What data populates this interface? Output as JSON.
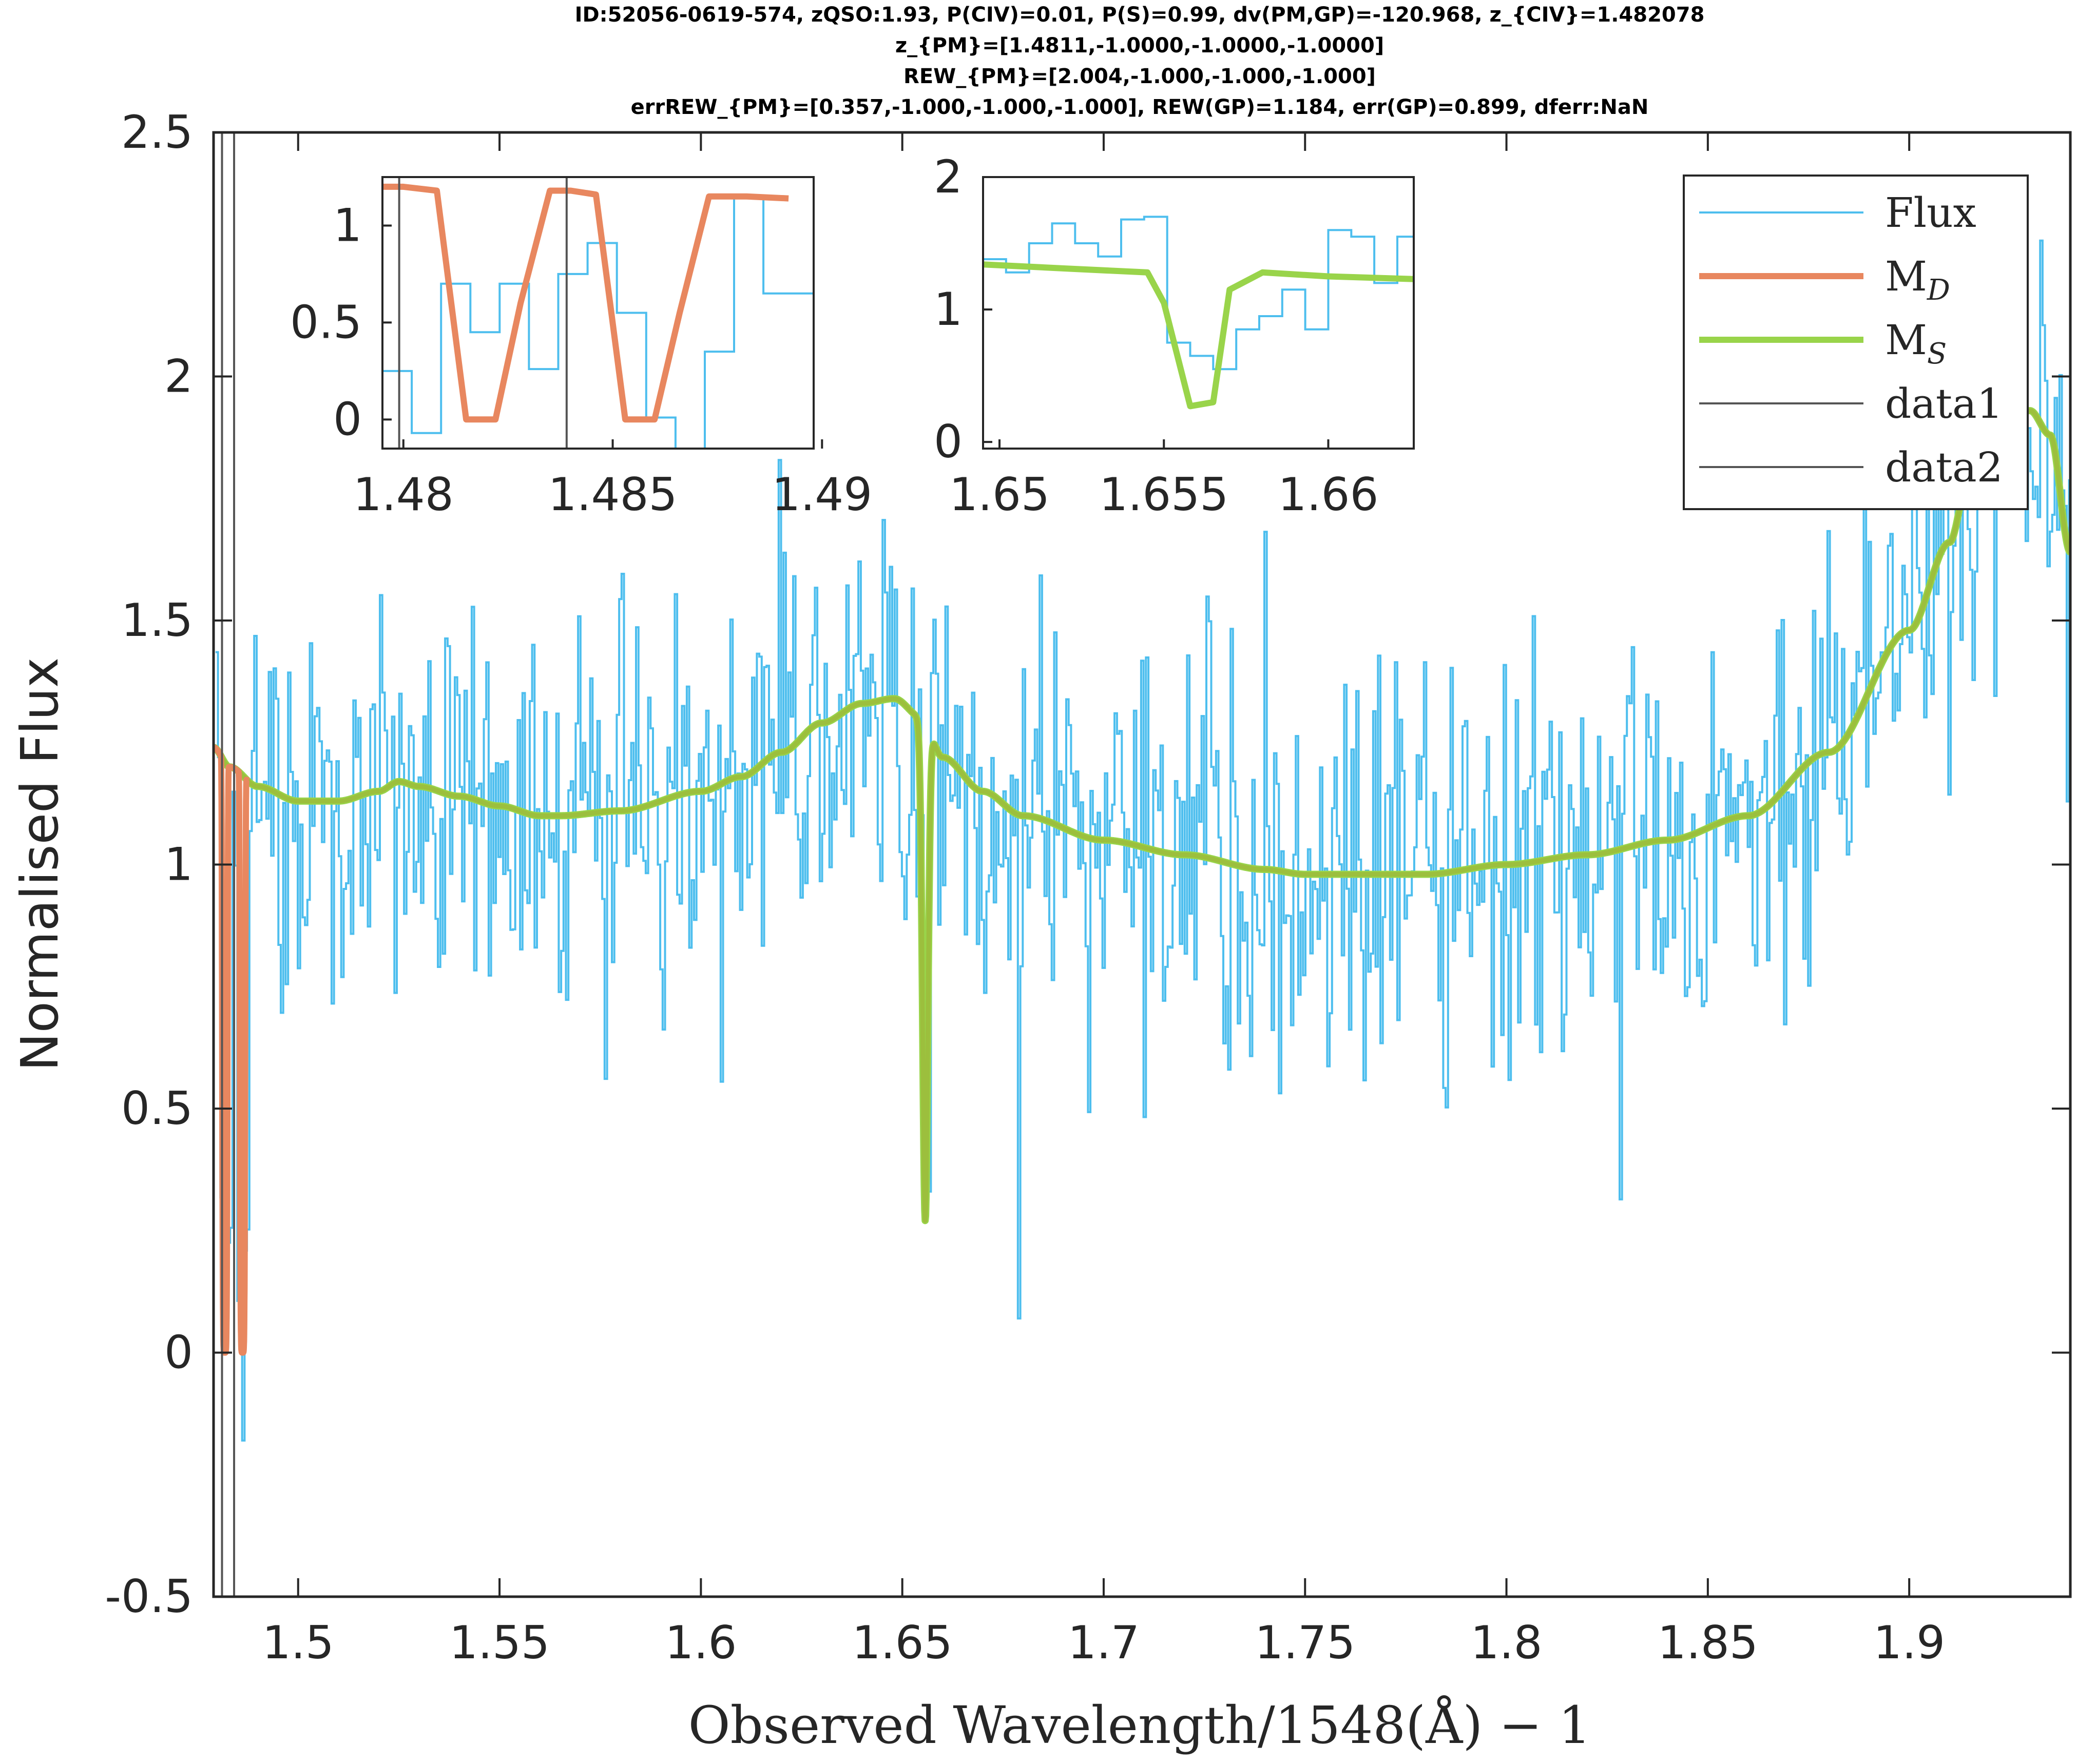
{
  "chart_data": {
    "type": "line",
    "title_lines": [
      "ID:52056-0619-574, zQSO:1.93, P(CIV)=0.01, P(S)=0.99, dv(PM,GP)=-120.968, z_{CIV}=1.482078",
      "z_{PM}=[1.4811,-1.0000,-1.0000,-1.0000]",
      "REW_{PM}=[2.004,-1.000,-1.000,-1.000]",
      "errREW_{PM}=[0.357,-1.000,-1.000,-1.000], REW(GP)=1.184, err(GP)=0.899, dferr:NaN"
    ],
    "xlabel": "Observed Wavelength/1548(Å) − 1",
    "ylabel": "Normalised Flux",
    "xlim": [
      1.479,
      1.94
    ],
    "ylim": [
      -0.5,
      2.5
    ],
    "x_ticks": [
      1.5,
      1.55,
      1.6,
      1.65,
      1.7,
      1.75,
      1.8,
      1.85,
      1.9
    ],
    "x_tick_labels": [
      "1.5",
      "1.55",
      "1.6",
      "1.65",
      "1.7",
      "1.75",
      "1.8",
      "1.85",
      "1.9"
    ],
    "y_ticks": [
      -0.5,
      0,
      0.5,
      1,
      1.5,
      2,
      2.5
    ],
    "y_tick_labels": [
      "-0.5",
      "0",
      "0.5",
      "1",
      "1.5",
      "2",
      "2.5"
    ],
    "grid": false,
    "legend": {
      "placement": "top-right",
      "entries": [
        {
          "label": "Flux",
          "sub": "",
          "color": "#4DBEEE"
        },
        {
          "label": "M",
          "sub": "D",
          "color": "#E8875F"
        },
        {
          "label": "M",
          "sub": "S",
          "color": "#99D44A"
        },
        {
          "label": "data1",
          "sub": "",
          "color": "#555555"
        },
        {
          "label": "data2",
          "sub": "",
          "color": "#555555"
        }
      ]
    },
    "colors": {
      "flux": "#4DBEEE",
      "model_d": "#E8875F",
      "model_s": "#99D44A",
      "model_overlap": "#9DB83A",
      "vline": "#555555"
    },
    "vlines": [
      1.4811,
      1.4841
    ],
    "continuum": {
      "x": [
        1.479,
        1.483,
        1.49,
        1.5,
        1.51,
        1.52,
        1.525,
        1.53,
        1.54,
        1.55,
        1.56,
        1.565,
        1.58,
        1.6,
        1.61,
        1.62,
        1.63,
        1.64,
        1.648,
        1.655,
        1.66,
        1.67,
        1.68,
        1.7,
        1.72,
        1.74,
        1.75,
        1.76,
        1.77,
        1.78,
        1.8,
        1.82,
        1.84,
        1.86,
        1.88,
        1.9,
        1.91,
        1.915,
        1.92,
        1.925,
        1.93,
        1.935,
        1.94
      ],
      "y": [
        1.24,
        1.2,
        1.16,
        1.13,
        1.13,
        1.15,
        1.17,
        1.16,
        1.14,
        1.12,
        1.1,
        1.1,
        1.11,
        1.15,
        1.18,
        1.23,
        1.29,
        1.33,
        1.34,
        1.3,
        1.22,
        1.15,
        1.1,
        1.05,
        1.02,
        0.99,
        0.98,
        0.98,
        0.98,
        0.98,
        1.0,
        1.02,
        1.05,
        1.1,
        1.23,
        1.48,
        1.66,
        1.8,
        1.9,
        1.93,
        1.93,
        1.88,
        1.64
      ]
    },
    "md_dips": [
      {
        "center": 1.4818,
        "width": 0.0014
      },
      {
        "center": 1.4862,
        "width": 0.0014
      }
    ],
    "ms_dip": {
      "center": 1.6557,
      "width": 0.0011,
      "min": 0.27
    },
    "flux": {
      "x_start": 1.4795,
      "x_step": 0.0006,
      "noise_sigma": 0.21,
      "seed": 52056,
      "features": [
        {
          "x": 1.4818,
          "y": 0.05
        },
        {
          "x": 1.4862,
          "y": -0.18
        },
        {
          "x": 1.6556,
          "y": 0.62
        },
        {
          "x": 1.6562,
          "y": 0.33
        },
        {
          "x": 1.6785,
          "y": 0.07
        }
      ]
    },
    "insets": [
      {
        "xlim": [
          1.4795,
          1.4898
        ],
        "ylim": [
          -0.15,
          1.25
        ],
        "x_ticks": [
          1.48,
          1.485,
          1.49
        ],
        "x_tick_labels": [
          "1.48",
          "1.485",
          "1.49"
        ],
        "y_ticks": [
          0,
          0.5,
          1
        ],
        "y_tick_labels": [
          "0",
          "0.5",
          "1"
        ],
        "flux_x": [
          1.4795,
          1.4802,
          1.4809,
          1.4816,
          1.4823,
          1.483,
          1.4837,
          1.4844,
          1.4851,
          1.4858,
          1.4865,
          1.4872,
          1.4879,
          1.4886,
          1.4893
        ],
        "flux_y": [
          0.25,
          -0.07,
          0.7,
          0.45,
          0.7,
          0.26,
          0.75,
          0.91,
          0.55,
          0.01,
          -0.15,
          0.35,
          1.15,
          0.65,
          0.65
        ],
        "model": {
          "x": [
            1.4795,
            1.48,
            1.4808,
            1.4815,
            1.4822,
            1.4828,
            1.4835,
            1.484,
            1.4846,
            1.4853,
            1.486,
            1.4866,
            1.4873,
            1.4882,
            1.4892
          ],
          "y": [
            1.2,
            1.2,
            1.18,
            0.0,
            0.0,
            0.6,
            1.18,
            1.18,
            1.16,
            0.0,
            0.0,
            0.55,
            1.15,
            1.15,
            1.14
          ]
        },
        "model_color": "#E8875F",
        "vlines": [
          1.4799,
          1.4839
        ]
      },
      {
        "xlim": [
          1.6495,
          1.6626
        ],
        "ylim": [
          -0.05,
          2.0
        ],
        "x_ticks": [
          1.65,
          1.655,
          1.66
        ],
        "x_tick_labels": [
          "1.65",
          "1.655",
          "1.66"
        ],
        "y_ticks": [
          0,
          1,
          2
        ],
        "y_tick_labels": [
          "0",
          "1",
          "2"
        ],
        "flux_x": [
          1.6495,
          1.6502,
          1.6509,
          1.6516,
          1.6523,
          1.653,
          1.6537,
          1.6544,
          1.6551,
          1.6558,
          1.6565,
          1.6572,
          1.6579,
          1.6586,
          1.6593,
          1.66,
          1.6607,
          1.6614,
          1.6621
        ],
        "flux_y": [
          1.38,
          1.28,
          1.5,
          1.65,
          1.5,
          1.4,
          1.68,
          1.7,
          0.75,
          0.65,
          0.55,
          0.85,
          0.95,
          1.15,
          0.85,
          1.6,
          1.55,
          1.2,
          1.55
        ],
        "model": {
          "x": [
            1.6495,
            1.652,
            1.6545,
            1.655,
            1.6558,
            1.6565,
            1.657,
            1.658,
            1.66,
            1.6626
          ],
          "y": [
            1.34,
            1.31,
            1.28,
            1.05,
            0.27,
            0.3,
            1.15,
            1.28,
            1.25,
            1.23
          ]
        },
        "model_color": "#99D44A",
        "vlines": []
      }
    ]
  }
}
